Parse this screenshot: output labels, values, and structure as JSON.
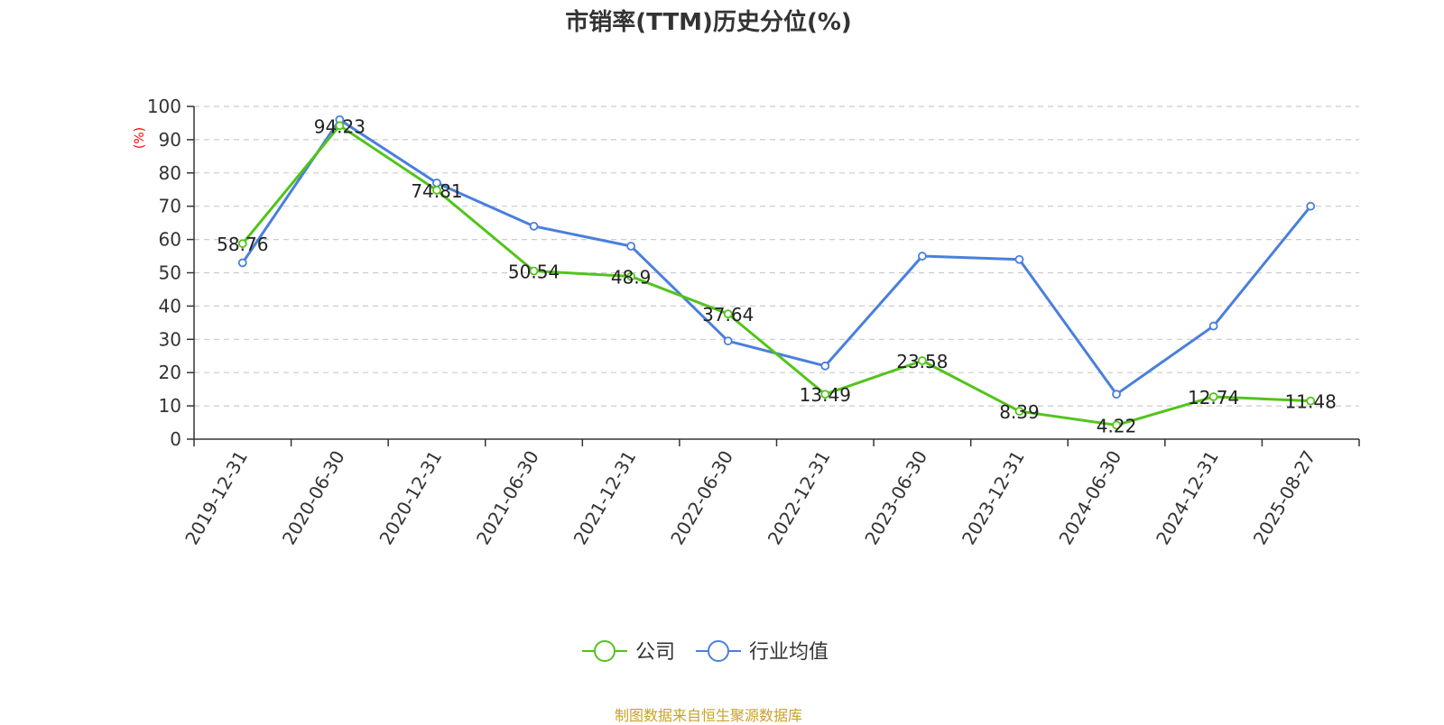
{
  "chart_data": {
    "type": "line",
    "title": "市销率(TTM)历史分位(%)",
    "ylabel": "(%)",
    "ylim": [
      0,
      100
    ],
    "yticks": [
      0,
      10,
      20,
      30,
      40,
      50,
      60,
      70,
      80,
      90,
      100
    ],
    "grid": true,
    "legend_position": "bottom-center",
    "categories": [
      "2019-12-31",
      "2020-06-30",
      "2020-12-31",
      "2021-06-30",
      "2021-12-31",
      "2022-06-30",
      "2022-12-31",
      "2023-06-30",
      "2023-12-31",
      "2024-06-30",
      "2024-12-31",
      "2025-08-27"
    ],
    "series": [
      {
        "name": "公司",
        "color": "#52c41a",
        "values": [
          58.76,
          94.23,
          74.81,
          50.54,
          48.9,
          37.64,
          13.49,
          23.58,
          8.39,
          4.22,
          12.74,
          11.48
        ],
        "labels": [
          "58.76",
          "94.23",
          "74.81",
          "50.54",
          "48.9",
          "37.64",
          "13.49",
          "23.58",
          "8.39",
          "4.22",
          "12.74",
          "11.48"
        ]
      },
      {
        "name": "行业均值",
        "color": "#4a7fdc",
        "values": [
          53,
          96,
          77,
          64,
          58,
          29.5,
          22,
          55,
          54,
          13.5,
          34,
          70
        ]
      }
    ]
  },
  "source_text": "制图数据来自恒生聚源数据库"
}
